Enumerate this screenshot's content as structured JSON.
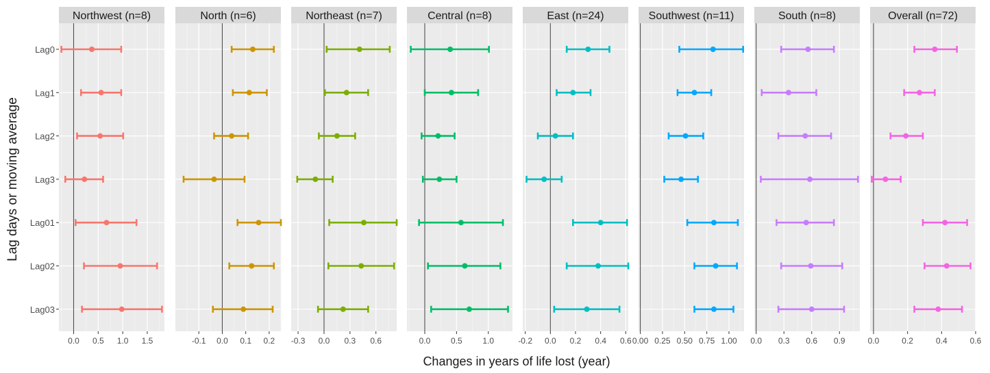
{
  "chart_data": {
    "type": "forest",
    "xlabel": "Changes in years of life lost (year)",
    "ylabel": "Lag days or moving average",
    "categories": [
      "Lag0",
      "Lag1",
      "Lag2",
      "Lag3",
      "Lag01",
      "Lag02",
      "Lag03"
    ],
    "grid": true,
    "reference_line": 0,
    "panels": [
      {
        "title": "Northwest (n=8)",
        "color": "#F8766D",
        "xlim": [
          -0.3,
          1.85
        ],
        "ticks": [
          {
            "v": 0,
            "label": "0.0"
          },
          {
            "v": 0.5,
            "label": "0.5"
          },
          {
            "v": 1,
            "label": "1.0"
          },
          {
            "v": 1.5,
            "label": "1.5"
          }
        ],
        "points": [
          {
            "est": 0.37,
            "lo": -0.25,
            "hi": 0.97
          },
          {
            "est": 0.56,
            "lo": 0.15,
            "hi": 0.97
          },
          {
            "est": 0.54,
            "lo": 0.07,
            "hi": 1.01
          },
          {
            "est": 0.22,
            "lo": -0.17,
            "hi": 0.6
          },
          {
            "est": 0.67,
            "lo": 0.04,
            "hi": 1.28
          },
          {
            "est": 0.95,
            "lo": 0.21,
            "hi": 1.7
          },
          {
            "est": 0.98,
            "lo": 0.17,
            "hi": 1.8
          }
        ]
      },
      {
        "title": "North (n=6)",
        "color": "#CD9600",
        "xlim": [
          -0.2,
          0.25
        ],
        "ticks": [
          {
            "v": -0.1,
            "label": "-0.1"
          },
          {
            "v": 0,
            "label": "0.0"
          },
          {
            "v": 0.1,
            "label": "0.1"
          },
          {
            "v": 0.2,
            "label": "0.2"
          }
        ],
        "points": [
          {
            "est": 0.13,
            "lo": 0.04,
            "hi": 0.22
          },
          {
            "est": 0.115,
            "lo": 0.045,
            "hi": 0.19
          },
          {
            "est": 0.04,
            "lo": -0.035,
            "hi": 0.11
          },
          {
            "est": -0.035,
            "lo": -0.165,
            "hi": 0.095
          },
          {
            "est": 0.155,
            "lo": 0.065,
            "hi": 0.25
          },
          {
            "est": 0.125,
            "lo": 0.03,
            "hi": 0.22
          },
          {
            "est": 0.09,
            "lo": -0.04,
            "hi": 0.215
          }
        ]
      },
      {
        "title": "Northeast (n=7)",
        "color": "#7CAE00",
        "xlim": [
          -0.38,
          0.84
        ],
        "ticks": [
          {
            "v": -0.3,
            "label": "-0.3"
          },
          {
            "v": 0,
            "label": "0.0"
          },
          {
            "v": 0.3,
            "label": "0.3"
          },
          {
            "v": 0.6,
            "label": "0.6"
          }
        ],
        "points": [
          {
            "est": 0.41,
            "lo": 0.03,
            "hi": 0.76
          },
          {
            "est": 0.26,
            "lo": 0.01,
            "hi": 0.51
          },
          {
            "est": 0.15,
            "lo": -0.06,
            "hi": 0.36
          },
          {
            "est": -0.1,
            "lo": -0.31,
            "hi": 0.1
          },
          {
            "est": 0.46,
            "lo": 0.06,
            "hi": 0.84
          },
          {
            "est": 0.43,
            "lo": 0.05,
            "hi": 0.81
          },
          {
            "est": 0.22,
            "lo": -0.07,
            "hi": 0.51
          }
        ]
      },
      {
        "title": "Central (n=8)",
        "color": "#00BE67",
        "xlim": [
          -0.28,
          1.38
        ],
        "ticks": [
          {
            "v": 0,
            "label": "0.0"
          },
          {
            "v": 0.5,
            "label": "0.5"
          },
          {
            "v": 1,
            "label": "1.0"
          }
        ],
        "points": [
          {
            "est": 0.4,
            "lo": -0.22,
            "hi": 1.01
          },
          {
            "est": 0.42,
            "lo": 0.0,
            "hi": 0.84
          },
          {
            "est": 0.21,
            "lo": -0.05,
            "hi": 0.47
          },
          {
            "est": 0.23,
            "lo": -0.03,
            "hi": 0.5
          },
          {
            "est": 0.57,
            "lo": -0.09,
            "hi": 1.23
          },
          {
            "est": 0.63,
            "lo": 0.05,
            "hi": 1.19
          },
          {
            "est": 0.7,
            "lo": 0.1,
            "hi": 1.31
          }
        ]
      },
      {
        "title": "East (n=24)",
        "color": "#00BFC4",
        "xlim": [
          -0.22,
          0.62
        ],
        "ticks": [
          {
            "v": -0.2,
            "label": "-0.2"
          },
          {
            "v": 0,
            "label": "0.0"
          },
          {
            "v": 0.2,
            "label": "0.2"
          },
          {
            "v": 0.4,
            "label": "0.4"
          },
          {
            "v": 0.6,
            "label": "0.6"
          }
        ],
        "points": [
          {
            "est": 0.3,
            "lo": 0.13,
            "hi": 0.47
          },
          {
            "est": 0.18,
            "lo": 0.05,
            "hi": 0.32
          },
          {
            "est": 0.04,
            "lo": -0.1,
            "hi": 0.18
          },
          {
            "est": -0.05,
            "lo": -0.19,
            "hi": 0.09
          },
          {
            "est": 0.4,
            "lo": 0.18,
            "hi": 0.61
          },
          {
            "est": 0.38,
            "lo": 0.13,
            "hi": 0.62
          },
          {
            "est": 0.29,
            "lo": 0.03,
            "hi": 0.55
          }
        ]
      },
      {
        "title": "Southwest (n=11)",
        "color": "#00A9FF",
        "xlim": [
          -0.02,
          1.17
        ],
        "ticks": [
          {
            "v": 0,
            "label": "0.00"
          },
          {
            "v": 0.25,
            "label": "0.25"
          },
          {
            "v": 0.5,
            "label": "0.50"
          },
          {
            "v": 0.75,
            "label": "0.75"
          },
          {
            "v": 1,
            "label": "1.00"
          }
        ],
        "points": [
          {
            "est": 0.82,
            "lo": 0.44,
            "hi": 1.16
          },
          {
            "est": 0.61,
            "lo": 0.42,
            "hi": 0.8
          },
          {
            "est": 0.51,
            "lo": 0.32,
            "hi": 0.71
          },
          {
            "est": 0.46,
            "lo": 0.27,
            "hi": 0.65
          },
          {
            "est": 0.83,
            "lo": 0.53,
            "hi": 1.1
          },
          {
            "est": 0.85,
            "lo": 0.61,
            "hi": 1.09
          },
          {
            "est": 0.83,
            "lo": 0.61,
            "hi": 1.05
          }
        ]
      },
      {
        "title": "South (n=8)",
        "color": "#C77CFF",
        "xlim": [
          -0.02,
          1.12
        ],
        "ticks": [
          {
            "v": 0,
            "label": "0.0"
          },
          {
            "v": 0.3,
            "label": "0.3"
          },
          {
            "v": 0.6,
            "label": "0.6"
          },
          {
            "v": 0.9,
            "label": "0.9"
          }
        ],
        "points": [
          {
            "est": 0.56,
            "lo": 0.27,
            "hi": 0.84
          },
          {
            "est": 0.35,
            "lo": 0.06,
            "hi": 0.65
          },
          {
            "est": 0.53,
            "lo": 0.24,
            "hi": 0.81
          },
          {
            "est": 0.58,
            "lo": 0.05,
            "hi": 1.1
          },
          {
            "est": 0.54,
            "lo": 0.22,
            "hi": 0.84
          },
          {
            "est": 0.59,
            "lo": 0.27,
            "hi": 0.93
          },
          {
            "est": 0.6,
            "lo": 0.24,
            "hi": 0.95
          }
        ]
      },
      {
        "title": "Overall (n=72)",
        "color": "#F564E3",
        "xlim": [
          -0.02,
          0.6
        ],
        "ticks": [
          {
            "v": 0,
            "label": "0.0"
          },
          {
            "v": 0.2,
            "label": "0.2"
          },
          {
            "v": 0.4,
            "label": "0.4"
          },
          {
            "v": 0.6,
            "label": "0.6"
          }
        ],
        "points": [
          {
            "est": 0.36,
            "lo": 0.24,
            "hi": 0.49
          },
          {
            "est": 0.27,
            "lo": 0.18,
            "hi": 0.36
          },
          {
            "est": 0.19,
            "lo": 0.1,
            "hi": 0.29
          },
          {
            "est": 0.07,
            "lo": -0.01,
            "hi": 0.16
          },
          {
            "est": 0.42,
            "lo": 0.29,
            "hi": 0.55
          },
          {
            "est": 0.43,
            "lo": 0.3,
            "hi": 0.57
          },
          {
            "est": 0.38,
            "lo": 0.24,
            "hi": 0.52
          }
        ]
      }
    ]
  }
}
